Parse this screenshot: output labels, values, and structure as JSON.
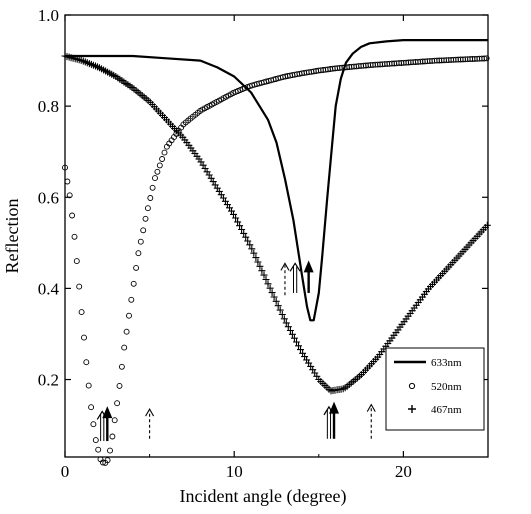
{
  "chart_data": {
    "type": "line",
    "xlabel": "Incident angle (degree)",
    "ylabel": "Reflection",
    "xlim": [
      0,
      25
    ],
    "ylim": [
      0.03,
      1.0
    ],
    "x_ticks": [
      {
        "value": 0,
        "label": "0"
      },
      {
        "value": 10,
        "label": "10"
      },
      {
        "value": 20,
        "label": "20"
      }
    ],
    "y_ticks": [
      {
        "value": 0.2,
        "label": "0.2"
      },
      {
        "value": 0.4,
        "label": "0.4"
      },
      {
        "value": 0.6,
        "label": "0.6"
      },
      {
        "value": 0.8,
        "label": "0.8"
      },
      {
        "value": 1.0,
        "label": "1.0"
      }
    ],
    "grid": false,
    "legend_position": "bottom-right",
    "series": [
      {
        "name": "633nm",
        "style": "solid-line",
        "x": [
          0,
          2,
          4,
          6,
          8,
          9,
          10,
          11,
          12,
          12.5,
          13,
          13.5,
          14,
          14.3,
          14.5,
          14.7,
          15,
          15.2,
          15.5,
          15.8,
          16,
          16.3,
          16.6,
          17,
          17.5,
          18,
          19,
          20,
          22,
          25
        ],
        "values": [
          0.91,
          0.91,
          0.91,
          0.905,
          0.9,
          0.885,
          0.865,
          0.83,
          0.77,
          0.72,
          0.64,
          0.55,
          0.43,
          0.36,
          0.33,
          0.33,
          0.39,
          0.47,
          0.6,
          0.72,
          0.8,
          0.86,
          0.895,
          0.915,
          0.93,
          0.938,
          0.942,
          0.945,
          0.945,
          0.945
        ]
      },
      {
        "name": "520nm",
        "style": "open-circles",
        "x": [
          0,
          0.3,
          0.6,
          0.9,
          1.2,
          1.5,
          1.8,
          2.1,
          2.3,
          2.5,
          2.7,
          2.9,
          3.2,
          3.5,
          3.9,
          4.3,
          4.8,
          5.3,
          6,
          7,
          8,
          9,
          10,
          11,
          12,
          13,
          14,
          15,
          16,
          18,
          20,
          22,
          25
        ],
        "values": [
          0.665,
          0.6,
          0.5,
          0.38,
          0.26,
          0.15,
          0.07,
          0.025,
          0.015,
          0.02,
          0.05,
          0.1,
          0.18,
          0.27,
          0.37,
          0.47,
          0.56,
          0.64,
          0.71,
          0.76,
          0.79,
          0.81,
          0.83,
          0.845,
          0.855,
          0.865,
          0.872,
          0.878,
          0.883,
          0.89,
          0.895,
          0.9,
          0.905
        ]
      },
      {
        "name": "467nm",
        "style": "plus-markers",
        "x": [
          0,
          1,
          2,
          3,
          4,
          5,
          6,
          7,
          8,
          9,
          10,
          11,
          12,
          13,
          14,
          15,
          15.7,
          16.5,
          17.5,
          18.5,
          19.5,
          20.5,
          21.5,
          22.5,
          23.5,
          24.5,
          25
        ],
        "values": [
          0.91,
          0.9,
          0.885,
          0.865,
          0.84,
          0.81,
          0.77,
          0.73,
          0.68,
          0.62,
          0.56,
          0.49,
          0.41,
          0.33,
          0.26,
          0.2,
          0.175,
          0.18,
          0.21,
          0.25,
          0.3,
          0.35,
          0.4,
          0.44,
          0.48,
          0.52,
          0.54
        ]
      }
    ],
    "annotations": [
      {
        "type": "solid-arrow",
        "x": 2.5,
        "y_start": 0.065,
        "y_end": 0.135
      },
      {
        "type": "double-arrow",
        "x": 2.2,
        "y_start": 0.065,
        "y_end": 0.13
      },
      {
        "type": "dashed-arrow",
        "x": 5.0,
        "y_start": 0.07,
        "y_end": 0.135
      },
      {
        "type": "solid-arrow",
        "x": 14.4,
        "y_start": 0.39,
        "y_end": 0.455
      },
      {
        "type": "double-arrow",
        "x": 13.6,
        "y_start": 0.39,
        "y_end": 0.455
      },
      {
        "type": "dashed-arrow",
        "x": 13.0,
        "y_start": 0.385,
        "y_end": 0.455
      },
      {
        "type": "solid-arrow",
        "x": 15.9,
        "y_start": 0.07,
        "y_end": 0.145
      },
      {
        "type": "double-arrow",
        "x": 15.6,
        "y_start": 0.07,
        "y_end": 0.14
      },
      {
        "type": "dashed-arrow",
        "x": 18.1,
        "y_start": 0.07,
        "y_end": 0.145
      }
    ]
  }
}
